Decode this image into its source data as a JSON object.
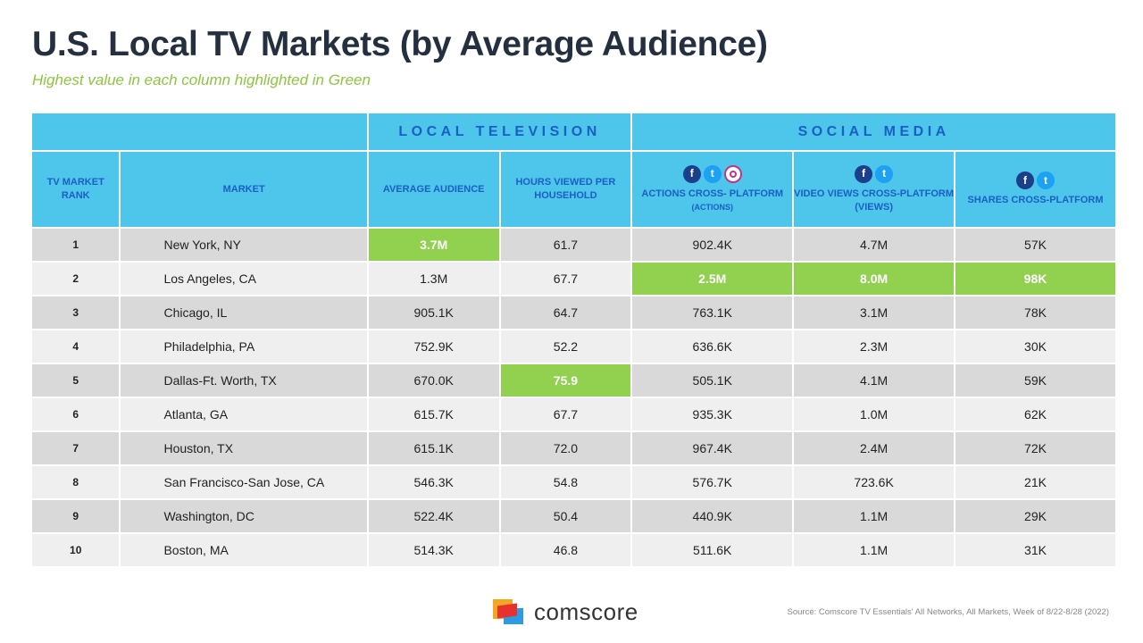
{
  "title": "U.S. Local TV Markets (by Average Audience)",
  "subtitle": "Highest value in each column highlighted in Green",
  "groups": {
    "local_tv": "LOCAL TELEVISION",
    "social": "SOCIAL MEDIA"
  },
  "headers": {
    "rank": "TV MARKET RANK",
    "market": "MARKET",
    "avg_audience": "AVERAGE AUDIENCE",
    "hours": "HOURS VIEWED PER HOUSEHOLD",
    "actions": "ACTIONS CROSS- PLATFORM",
    "actions_sub": "(ACTIONS)",
    "video": "VIDEO VIEWS CROSS-PLATFORM",
    "video_sub": "(VIEWS)",
    "shares": "SHARES CROSS-PLATFORM"
  },
  "icons": [
    "facebook-icon",
    "twitter-icon",
    "instagram-icon"
  ],
  "highlight_color": "#92d050",
  "rows": [
    {
      "rank": "1",
      "market": "New York, NY",
      "avg": "3.7M",
      "hours": "61.7",
      "actions": "902.4K",
      "video": "4.7M",
      "shares": "57K"
    },
    {
      "rank": "2",
      "market": "Los Angeles, CA",
      "avg": "1.3M",
      "hours": "67.7",
      "actions": "2.5M",
      "video": "8.0M",
      "shares": "98K"
    },
    {
      "rank": "3",
      "market": "Chicago, IL",
      "avg": "905.1K",
      "hours": "64.7",
      "actions": "763.1K",
      "video": "3.1M",
      "shares": "78K"
    },
    {
      "rank": "4",
      "market": "Philadelphia, PA",
      "avg": "752.9K",
      "hours": "52.2",
      "actions": "636.6K",
      "video": "2.3M",
      "shares": "30K"
    },
    {
      "rank": "5",
      "market": "Dallas-Ft. Worth, TX",
      "avg": "670.0K",
      "hours": "75.9",
      "actions": "505.1K",
      "video": "4.1M",
      "shares": "59K"
    },
    {
      "rank": "6",
      "market": "Atlanta, GA",
      "avg": "615.7K",
      "hours": "67.7",
      "actions": "935.3K",
      "video": "1.0M",
      "shares": "62K"
    },
    {
      "rank": "7",
      "market": "Houston, TX",
      "avg": "615.1K",
      "hours": "72.0",
      "actions": "967.4K",
      "video": "2.4M",
      "shares": "72K"
    },
    {
      "rank": "8",
      "market": "San Francisco-San Jose, CA",
      "avg": "546.3K",
      "hours": "54.8",
      "actions": "576.7K",
      "video": "723.6K",
      "shares": "21K"
    },
    {
      "rank": "9",
      "market": "Washington, DC",
      "avg": "522.4K",
      "hours": "50.4",
      "actions": "440.9K",
      "video": "1.1M",
      "shares": "29K"
    },
    {
      "rank": "10",
      "market": "Boston, MA",
      "avg": "514.3K",
      "hours": "46.8",
      "actions": "511.6K",
      "video": "1.1M",
      "shares": "31K"
    }
  ],
  "footer": {
    "logo_text": "comscore",
    "source": "Source: Comscore TV Essentials' All Networks, All Markets, Week of 8/22-8/28 (2022)"
  }
}
